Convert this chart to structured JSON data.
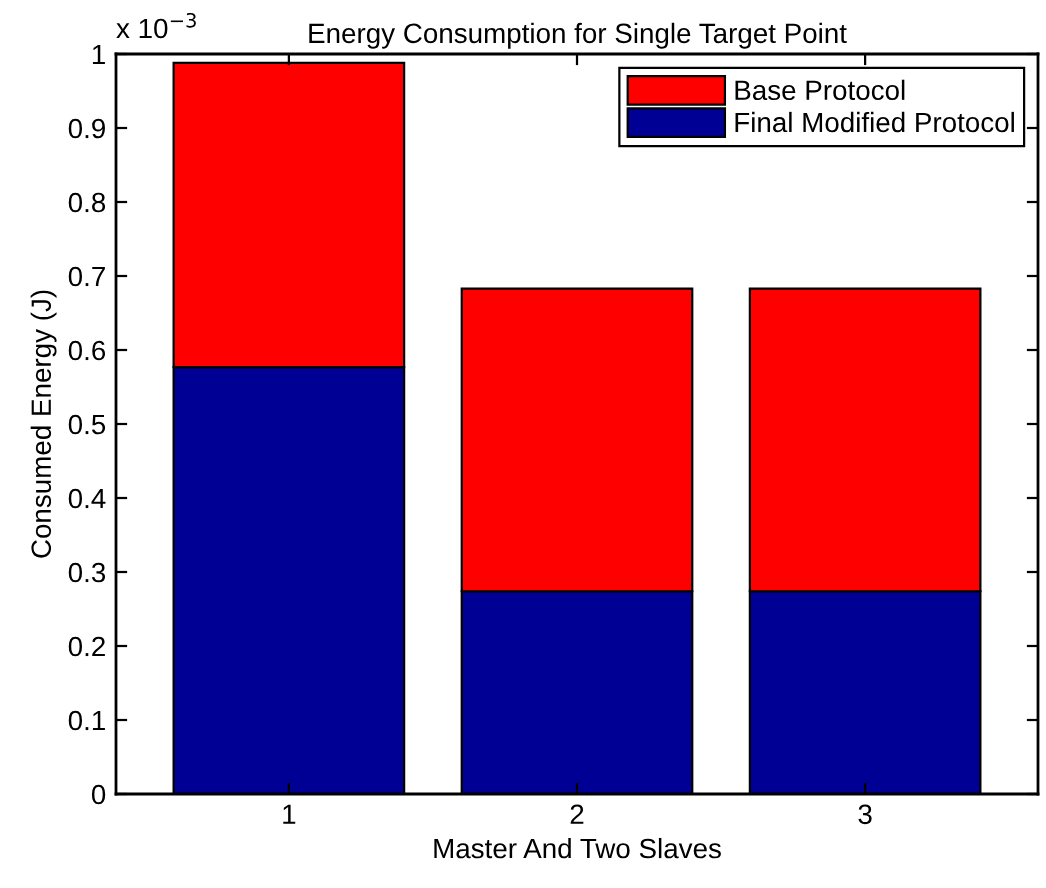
{
  "chart_data": {
    "type": "bar",
    "title": "Energy Consumption for Single Target Point",
    "xlabel": "Master And Two Slaves",
    "ylabel": "Consumed Energy (J)",
    "categories": [
      "1",
      "2",
      "3"
    ],
    "stacked": true,
    "series": [
      {
        "name": "Final Modified Protocol",
        "color": "#000094",
        "values": [
          0.577,
          0.274,
          0.274
        ]
      },
      {
        "name": "Base Protocol",
        "color": "#ff0000",
        "values": [
          0.411,
          0.409,
          0.409
        ]
      }
    ],
    "ylim": [
      0,
      1
    ],
    "yticks": [
      0,
      0.1,
      0.2,
      0.3,
      0.4,
      0.5,
      0.6,
      0.7,
      0.8,
      0.9,
      1
    ],
    "annotations": [
      "x 10$^{−3}$"
    ],
    "legend": "top right",
    "grid": false
  }
}
